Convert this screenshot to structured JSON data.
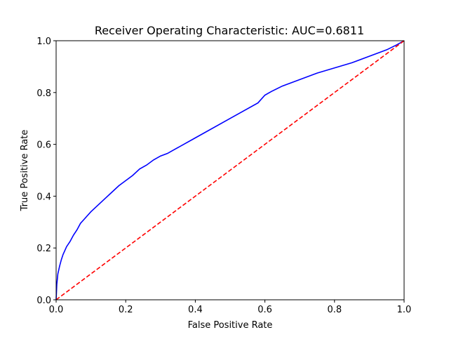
{
  "chart_data": {
    "type": "line",
    "title": "Receiver Operating Characteristic: AUC=0.6811",
    "xlabel": "False Positive Rate",
    "ylabel": "True Positive Rate",
    "xlim": [
      0,
      1
    ],
    "ylim": [
      0,
      1
    ],
    "xticks": [
      "0.0",
      "0.2",
      "0.4",
      "0.6",
      "0.8",
      "1.0"
    ],
    "yticks": [
      "0.0",
      "0.2",
      "0.4",
      "0.6",
      "0.8",
      "1.0"
    ],
    "grid": false,
    "series": [
      {
        "color": "#0000ff",
        "style": "solid",
        "x": [
          0.0,
          0.002,
          0.005,
          0.01,
          0.015,
          0.02,
          0.025,
          0.03,
          0.04,
          0.05,
          0.06,
          0.07,
          0.08,
          0.1,
          0.12,
          0.14,
          0.16,
          0.18,
          0.2,
          0.22,
          0.24,
          0.26,
          0.28,
          0.3,
          0.32,
          0.34,
          0.4,
          0.5,
          0.58,
          0.6,
          0.62,
          0.65,
          0.7,
          0.75,
          0.8,
          0.85,
          0.9,
          0.95,
          0.98,
          1.0
        ],
        "y": [
          0.0,
          0.06,
          0.1,
          0.13,
          0.155,
          0.175,
          0.19,
          0.205,
          0.225,
          0.25,
          0.27,
          0.295,
          0.31,
          0.34,
          0.365,
          0.39,
          0.415,
          0.44,
          0.46,
          0.48,
          0.505,
          0.52,
          0.54,
          0.555,
          0.565,
          0.58,
          0.625,
          0.7,
          0.76,
          0.79,
          0.805,
          0.825,
          0.85,
          0.875,
          0.895,
          0.915,
          0.94,
          0.965,
          0.985,
          1.0
        ]
      },
      {
        "color": "#ff0000",
        "style": "dashed",
        "x": [
          0,
          1
        ],
        "y": [
          0,
          1
        ]
      }
    ]
  }
}
